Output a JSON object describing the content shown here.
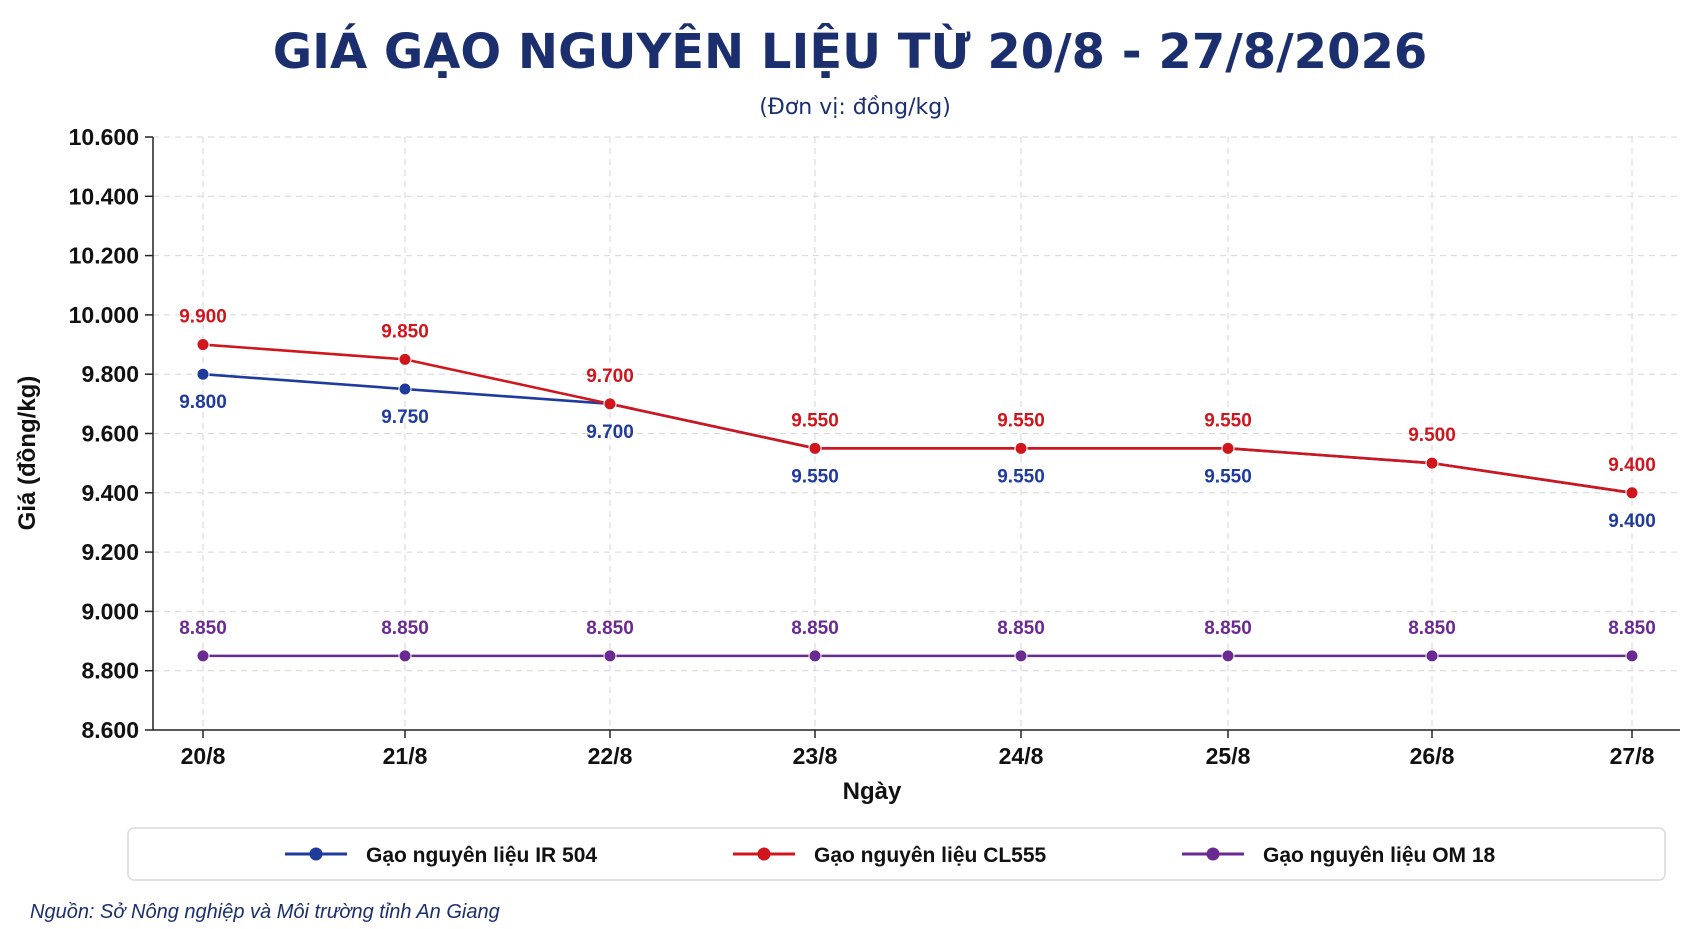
{
  "chart_data": {
    "type": "line",
    "title": "GIÁ GẠO NGUYÊN LIỆU TỪ 20/8 - 27/8/2026",
    "subtitle": "(Đơn vị: đồng/kg)",
    "xlabel": "Ngày",
    "ylabel": "Giá (đồng/kg)",
    "categories": [
      "20/8",
      "21/8",
      "22/8",
      "23/8",
      "24/8",
      "25/8",
      "26/8",
      "27/8"
    ],
    "ylim": [
      8600,
      10600
    ],
    "yticks": [
      8600,
      8800,
      9000,
      9200,
      9400,
      9600,
      9800,
      10000,
      10200,
      10400,
      10600
    ],
    "ytick_labels": [
      "8.600",
      "8.800",
      "9.000",
      "9.200",
      "9.400",
      "9.600",
      "9.800",
      "10.000",
      "10.200",
      "10.400",
      "10.600"
    ],
    "grid": true,
    "legend_position": "bottom",
    "series": [
      {
        "name": "Gạo nguyên liệu IR 504",
        "color": "#1f3b9c",
        "values": [
          9800,
          9750,
          9700,
          9550,
          9550,
          9550,
          9500,
          9400
        ],
        "labels": [
          "9.800",
          "9.750",
          "9.700",
          "9.550",
          "9.550",
          "9.550",
          "",
          "9.400"
        ],
        "label_position": "below"
      },
      {
        "name": "Gạo nguyên liệu CL555",
        "color": "#d0151c",
        "values": [
          9900,
          9850,
          9700,
          9550,
          9550,
          9550,
          9500,
          9400
        ],
        "labels": [
          "9.900",
          "9.850",
          "9.700",
          "9.550",
          "9.550",
          "9.550",
          "9.500",
          "9.400"
        ],
        "label_position": "above"
      },
      {
        "name": "Gạo nguyên liệu OM 18",
        "color": "#6a2a92",
        "values": [
          8850,
          8850,
          8850,
          8850,
          8850,
          8850,
          8850,
          8850
        ],
        "labels": [
          "8.850",
          "8.850",
          "8.850",
          "8.850",
          "8.850",
          "8.850",
          "8.850",
          "8.850"
        ],
        "label_position": "above"
      }
    ],
    "source": "Nguồn: Sở Nông nghiệp và Môi trường tỉnh An Giang"
  }
}
